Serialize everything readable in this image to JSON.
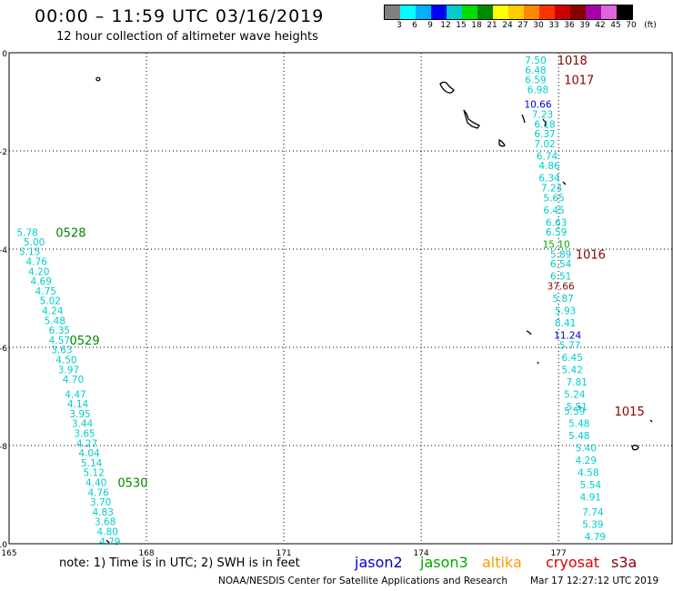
{
  "title": "00:00 – 11:59 UTC 03/16/2019",
  "subtitle": "12 hour collection of altimeter wave heights",
  "legend": {
    "colors": [
      "#808080",
      "#00ffff",
      "#00b0ff",
      "#0000ff",
      "#00cccc",
      "#00dd00",
      "#008800",
      "#ffff00",
      "#ffcc00",
      "#ff8800",
      "#ff3300",
      "#cc0000",
      "#880000",
      "#aa00aa",
      "#dd66dd",
      "#000000"
    ],
    "labels": [
      "3",
      "6",
      "9",
      "12",
      "15",
      "18",
      "21",
      "24",
      "27",
      "30",
      "33",
      "36",
      "39",
      "42",
      "45",
      "70",
      "(ft)"
    ]
  },
  "map": {
    "lon_min": 165,
    "lon_max": 179.5,
    "lat_min": -10,
    "lat_max": 0,
    "lon_labels": [
      "165",
      "168",
      "171",
      "174",
      "177"
    ],
    "lat_labels": [
      "0",
      "-2",
      "-4",
      "-6",
      "-8",
      "-10"
    ],
    "lon_ticks": [
      165,
      168,
      171,
      174,
      177
    ],
    "lat_ticks": [
      0,
      -2,
      -4,
      -6,
      -8,
      -10
    ]
  },
  "colors": {
    "cyan": "#00cccc",
    "blue": "#0000cc",
    "green": "#00aa00",
    "darkred": "#880000",
    "time_green": "#008800",
    "time_red": "#880000"
  },
  "tracks": [
    {
      "satellite": "jason3",
      "points": [
        {
          "lat": -3.66,
          "lon": 165.4,
          "value": "5.78",
          "color": "cyan"
        },
        {
          "lat": -3.85,
          "lon": 165.55,
          "value": "5.00",
          "color": "cyan"
        },
        {
          "lat": -4.05,
          "lon": 165.45,
          "value": "5.15",
          "color": "cyan"
        },
        {
          "lat": -4.25,
          "lon": 165.6,
          "value": "4.76",
          "color": "cyan"
        },
        {
          "lat": -4.45,
          "lon": 165.65,
          "value": "4.20",
          "color": "cyan"
        },
        {
          "lat": -4.65,
          "lon": 165.7,
          "value": "4.69",
          "color": "cyan"
        },
        {
          "lat": -4.85,
          "lon": 165.8,
          "value": "4.75",
          "color": "cyan"
        },
        {
          "lat": -5.05,
          "lon": 165.9,
          "value": "5.02",
          "color": "cyan"
        },
        {
          "lat": -5.25,
          "lon": 165.95,
          "value": "4.24",
          "color": "cyan"
        },
        {
          "lat": -5.45,
          "lon": 166.0,
          "value": "5.48",
          "color": "cyan"
        },
        {
          "lat": -5.65,
          "lon": 166.1,
          "value": "6.35",
          "color": "cyan"
        },
        {
          "lat": -5.85,
          "lon": 166.1,
          "value": "4.57",
          "color": "cyan"
        },
        {
          "lat": -6.05,
          "lon": 166.15,
          "value": "3.63",
          "color": "cyan"
        },
        {
          "lat": -6.25,
          "lon": 166.25,
          "value": "4.50",
          "color": "cyan"
        },
        {
          "lat": -6.45,
          "lon": 166.3,
          "value": "3.97",
          "color": "cyan"
        },
        {
          "lat": -6.65,
          "lon": 166.4,
          "value": "4.70",
          "color": "cyan"
        },
        {
          "lat": -6.95,
          "lon": 166.45,
          "value": "4.47",
          "color": "cyan"
        },
        {
          "lat": -7.15,
          "lon": 166.5,
          "value": "4.14",
          "color": "cyan"
        },
        {
          "lat": -7.35,
          "lon": 166.55,
          "value": "3.95",
          "color": "cyan"
        },
        {
          "lat": -7.55,
          "lon": 166.6,
          "value": "3.44",
          "color": "cyan"
        },
        {
          "lat": -7.75,
          "lon": 166.65,
          "value": "3.65",
          "color": "cyan"
        },
        {
          "lat": -7.95,
          "lon": 166.7,
          "value": "4.27",
          "color": "cyan"
        },
        {
          "lat": -8.15,
          "lon": 166.75,
          "value": "4.04",
          "color": "cyan"
        },
        {
          "lat": -8.35,
          "lon": 166.8,
          "value": "5.14",
          "color": "cyan"
        },
        {
          "lat": -8.55,
          "lon": 166.85,
          "value": "5.12",
          "color": "cyan"
        },
        {
          "lat": -8.75,
          "lon": 166.9,
          "value": "4.40",
          "color": "cyan"
        },
        {
          "lat": -8.95,
          "lon": 166.95,
          "value": "4.76",
          "color": "cyan"
        },
        {
          "lat": -9.15,
          "lon": 167.0,
          "value": "3.70",
          "color": "cyan"
        },
        {
          "lat": -9.35,
          "lon": 167.05,
          "value": "4.83",
          "color": "cyan"
        },
        {
          "lat": -9.55,
          "lon": 167.1,
          "value": "3.68",
          "color": "cyan"
        },
        {
          "lat": -9.75,
          "lon": 167.15,
          "value": "4.80",
          "color": "cyan"
        },
        {
          "lat": -9.95,
          "lon": 167.2,
          "value": "4.79",
          "color": "cyan"
        }
      ],
      "time_labels": [
        {
          "lat": -3.66,
          "lon": 166.35,
          "text": "0528",
          "color": "time_green"
        },
        {
          "lat": -5.85,
          "lon": 166.65,
          "text": "0529",
          "color": "time_green"
        },
        {
          "lat": -8.75,
          "lon": 167.7,
          "text": "0530",
          "color": "time_green"
        }
      ]
    },
    {
      "satellite": "cryosat",
      "points": [
        {
          "lat": -0.15,
          "lon": 176.5,
          "value": "7.50",
          "color": "cyan"
        },
        {
          "lat": -0.35,
          "lon": 176.5,
          "value": "6.48",
          "color": "cyan"
        },
        {
          "lat": -0.55,
          "lon": 176.5,
          "value": "6.59",
          "color": "cyan"
        },
        {
          "lat": -0.75,
          "lon": 176.55,
          "value": "6.98",
          "color": "cyan"
        },
        {
          "lat": -1.05,
          "lon": 176.55,
          "value": "10.66",
          "color": "blue"
        },
        {
          "lat": -1.25,
          "lon": 176.65,
          "value": "7.23",
          "color": "cyan"
        },
        {
          "lat": -1.45,
          "lon": 176.7,
          "value": "6.18",
          "color": "cyan"
        },
        {
          "lat": -1.65,
          "lon": 176.7,
          "value": "6.37",
          "color": "cyan"
        },
        {
          "lat": -1.85,
          "lon": 176.7,
          "value": "7.02",
          "color": "cyan"
        },
        {
          "lat": -2.1,
          "lon": 176.75,
          "value": "6.74",
          "color": "cyan"
        },
        {
          "lat": -2.3,
          "lon": 176.8,
          "value": "4.86",
          "color": "cyan"
        },
        {
          "lat": -2.55,
          "lon": 176.8,
          "value": "6.34",
          "color": "cyan"
        },
        {
          "lat": -2.75,
          "lon": 176.85,
          "value": "7.24",
          "color": "cyan"
        },
        {
          "lat": -2.95,
          "lon": 176.9,
          "value": "5.65",
          "color": "cyan"
        },
        {
          "lat": -3.2,
          "lon": 176.9,
          "value": "6.45",
          "color": "cyan"
        },
        {
          "lat": -3.45,
          "lon": 176.95,
          "value": "6.63",
          "color": "cyan"
        },
        {
          "lat": -3.65,
          "lon": 176.95,
          "value": "6.59",
          "color": "cyan"
        },
        {
          "lat": -3.9,
          "lon": 176.95,
          "value": "15.10",
          "color": "green"
        },
        {
          "lat": -4.1,
          "lon": 177.05,
          "value": "5.89",
          "color": "cyan"
        },
        {
          "lat": -4.3,
          "lon": 177.05,
          "value": "6.54",
          "color": "cyan"
        },
        {
          "lat": -4.55,
          "lon": 177.05,
          "value": "6.51",
          "color": "cyan"
        },
        {
          "lat": -4.75,
          "lon": 177.05,
          "value": "37.66",
          "color": "darkred"
        },
        {
          "lat": -5.0,
          "lon": 177.1,
          "value": "5.87",
          "color": "cyan"
        },
        {
          "lat": -5.25,
          "lon": 177.15,
          "value": "5.93",
          "color": "cyan"
        },
        {
          "lat": -5.5,
          "lon": 177.15,
          "value": "8.41",
          "color": "cyan"
        },
        {
          "lat": -5.75,
          "lon": 177.2,
          "value": "11.24",
          "color": "blue"
        },
        {
          "lat": -5.95,
          "lon": 177.25,
          "value": "5.77",
          "color": "cyan"
        },
        {
          "lat": -6.2,
          "lon": 177.3,
          "value": "6.45",
          "color": "cyan"
        },
        {
          "lat": -6.45,
          "lon": 177.3,
          "value": "5.42",
          "color": "cyan"
        },
        {
          "lat": -6.7,
          "lon": 177.4,
          "value": "7.81",
          "color": "cyan"
        },
        {
          "lat": -6.95,
          "lon": 177.35,
          "value": "5.24",
          "color": "cyan"
        },
        {
          "lat": -7.2,
          "lon": 177.4,
          "value": "5.51",
          "color": "cyan"
        },
        {
          "lat": -7.3,
          "lon": 177.35,
          "value": "5.59",
          "color": "cyan"
        },
        {
          "lat": -7.55,
          "lon": 177.45,
          "value": "5.48",
          "color": "cyan"
        },
        {
          "lat": -7.8,
          "lon": 177.45,
          "value": "5.48",
          "color": "cyan"
        },
        {
          "lat": -8.05,
          "lon": 177.6,
          "value": "5.40",
          "color": "cyan"
        },
        {
          "lat": -8.3,
          "lon": 177.6,
          "value": "4.29",
          "color": "cyan"
        },
        {
          "lat": -8.55,
          "lon": 177.65,
          "value": "4.58",
          "color": "cyan"
        },
        {
          "lat": -8.8,
          "lon": 177.7,
          "value": "5.54",
          "color": "cyan"
        },
        {
          "lat": -9.05,
          "lon": 177.7,
          "value": "4.91",
          "color": "cyan"
        },
        {
          "lat": -9.35,
          "lon": 177.75,
          "value": "7.74",
          "color": "cyan"
        },
        {
          "lat": -9.6,
          "lon": 177.75,
          "value": "5.39",
          "color": "cyan"
        },
        {
          "lat": -9.85,
          "lon": 177.8,
          "value": "4.79",
          "color": "cyan"
        }
      ],
      "time_labels": [
        {
          "lat": -0.15,
          "lon": 177.3,
          "text": "1018",
          "color": "time_red"
        },
        {
          "lat": -0.55,
          "lon": 177.45,
          "text": "1017",
          "color": "time_red"
        },
        {
          "lat": -4.1,
          "lon": 177.7,
          "text": "1016",
          "color": "time_red"
        },
        {
          "lat": -7.3,
          "lon": 178.55,
          "text": "1015",
          "color": "time_red"
        }
      ]
    }
  ],
  "note": "note:  1) Time is in UTC; 2) SWH is in feet",
  "satellites": [
    {
      "name": "jason2",
      "color": "#0000cc"
    },
    {
      "name": "jason3",
      "color": "#00aa00"
    },
    {
      "name": "altika",
      "color": "#ff9900"
    },
    {
      "name": "cryosat",
      "color": "#dd0000"
    },
    {
      "name": "s3a",
      "color": "#880000"
    }
  ],
  "credit": "NOAA/NESDIS Center for Satellite Applications and Research",
  "timestamp": "Mar 17 12:27:12 UTC 2019"
}
